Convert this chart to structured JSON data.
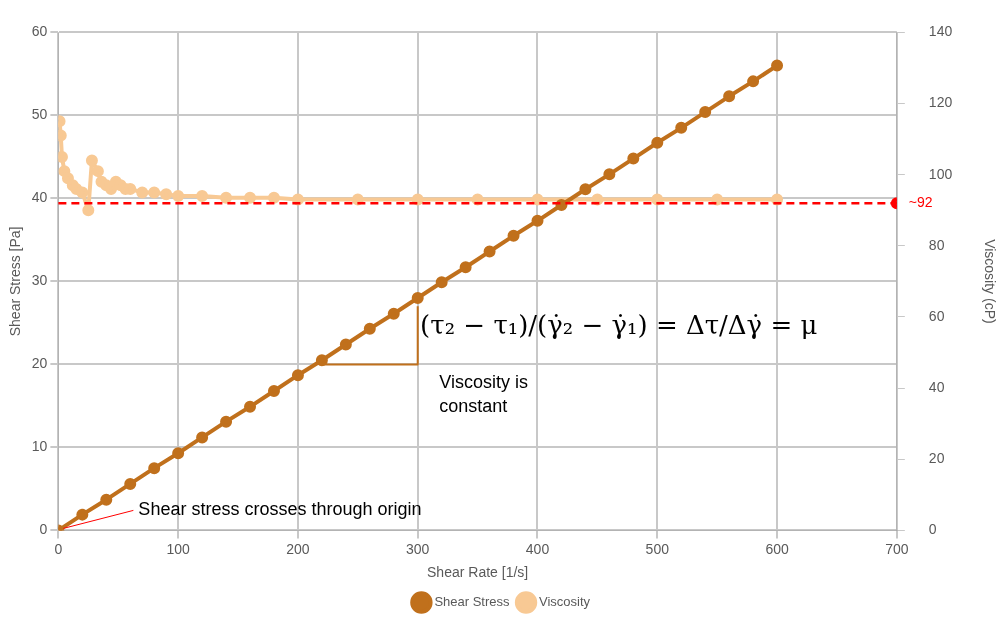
{
  "chart_data": {
    "type": "scatter",
    "xlabel": "Shear Rate [1/s]",
    "ylabel": "Shear Stress [Pa]",
    "y2label": "Viscosity (cP)",
    "xlim": [
      0,
      700
    ],
    "xticks": [
      0,
      100,
      200,
      300,
      400,
      500,
      600,
      700
    ],
    "ylim": [
      0,
      60
    ],
    "yticks": [
      0,
      10,
      20,
      30,
      40,
      50,
      60
    ],
    "y2lim": [
      0,
      140
    ],
    "y2ticks": [
      0,
      20,
      40,
      60,
      80,
      100,
      120,
      140
    ],
    "grid": true,
    "legend": "bottom",
    "marker": "circle",
    "line_style": "solid",
    "series": [
      {
        "name": "Shear Stress",
        "type": "line",
        "color": "#c0701c",
        "x": [
          0,
          20,
          40,
          60,
          80,
          100,
          120,
          140,
          160,
          180,
          200,
          220,
          240,
          260,
          280,
          300,
          320,
          340,
          360,
          380,
          400,
          420,
          440,
          460,
          480,
          500,
          520,
          540,
          560,
          580,
          600
        ],
        "values": [
          0,
          1.9,
          3.7,
          5.6,
          7.5,
          9.3,
          11.2,
          13.1,
          14.9,
          16.8,
          18.7,
          20.5,
          22.4,
          24.3,
          26.1,
          28,
          29.9,
          31.7,
          33.6,
          35.5,
          37.3,
          39.2,
          41.1,
          42.9,
          44.8,
          46.7,
          48.5,
          50.4,
          52.3,
          54.1,
          56
        ]
      },
      {
        "name": "Viscosity",
        "type": "line",
        "axis": "y2",
        "color": "#f8c994",
        "x": [
          1,
          2,
          3,
          5,
          8,
          12,
          15,
          20,
          25,
          28,
          33,
          36,
          40,
          44,
          48,
          52,
          56,
          60,
          70,
          80,
          90,
          100,
          120,
          140,
          160,
          180,
          200,
          250,
          300,
          350,
          400,
          450,
          500,
          550,
          600
        ],
        "values": [
          115,
          111,
          105,
          101,
          99,
          97,
          96,
          95,
          90,
          104,
          101,
          98,
          97,
          96,
          98,
          97,
          96,
          96,
          95,
          95,
          94.5,
          94,
          94,
          93.5,
          93.5,
          93.5,
          93,
          93,
          93,
          93,
          93,
          93,
          93,
          93,
          93
        ]
      },
      {
        "type": "line",
        "color": "#c0701c",
        "marker": "none",
        "x": [
          220,
          300,
          300
        ],
        "values": [
          20,
          20,
          27
        ]
      },
      {
        "type": "scatter",
        "axis": "y2",
        "color": "#ff0000",
        "x": [
          700
        ],
        "values": [
          92
        ]
      }
    ],
    "ref_lines": [
      {
        "axis": "y2",
        "value": 92,
        "label": "~92",
        "color": "#ff0000",
        "line_style": "dashed"
      }
    ],
    "annotations": [
      {
        "text": "Shear stress crosses through origin",
        "x": 0,
        "y": 0
      },
      "(τ₂ − τ₁)/(γ̇₂ − γ̇₁) = Δτ/Δγ̇ = μ",
      "Viscosity is constant"
    ]
  }
}
